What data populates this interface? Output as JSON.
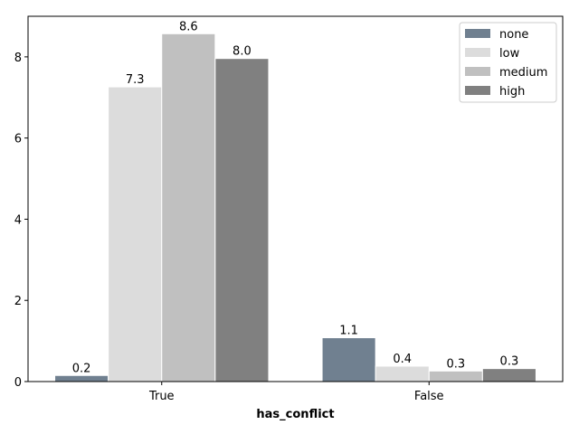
{
  "chart_data": {
    "type": "bar",
    "xlabel": "has_conflict",
    "ylabel": "",
    "title": "",
    "categories": [
      "True",
      "False"
    ],
    "series": [
      {
        "name": "none",
        "color": "#708090",
        "values": [
          0.15,
          1.08
        ],
        "labels": [
          "0.2",
          "1.1"
        ]
      },
      {
        "name": "low",
        "color": "#dcdcdc",
        "values": [
          7.26,
          0.38
        ],
        "labels": [
          "7.3",
          "0.4"
        ]
      },
      {
        "name": "medium",
        "color": "#c0c0c0",
        "values": [
          8.57,
          0.26
        ],
        "labels": [
          "8.6",
          "0.3"
        ]
      },
      {
        "name": "high",
        "color": "#808080",
        "values": [
          7.96,
          0.32
        ],
        "labels": [
          "8.0",
          "0.3"
        ]
      }
    ],
    "yticks": [
      0,
      2,
      4,
      6,
      8
    ],
    "ylim": [
      0,
      9.0
    ],
    "grid": false,
    "legend_position": "top-right"
  }
}
